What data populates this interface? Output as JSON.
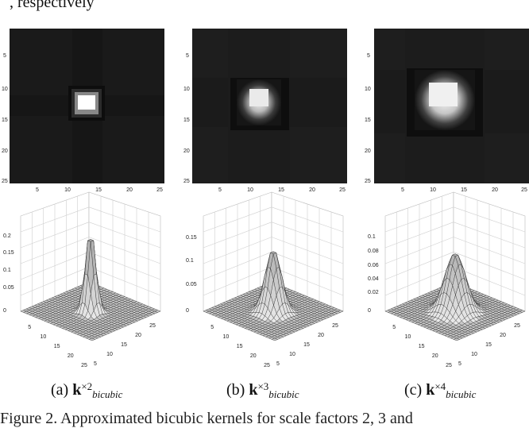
{
  "top_text": ", respectively",
  "panels": [
    {
      "ticks": [
        "5",
        "10",
        "15",
        "20",
        "25"
      ],
      "z_ticks": [
        "0.2",
        "0.15",
        "0.1",
        "0.05",
        "0"
      ],
      "xy_ticks": [
        "5",
        "10",
        "15",
        "20",
        "25"
      ],
      "caption_label": "(a)",
      "caption_k": "k",
      "caption_sup": "×2",
      "caption_sub": "bicubic"
    },
    {
      "ticks": [
        "5",
        "10",
        "15",
        "20",
        "25"
      ],
      "z_ticks": [
        "0.15",
        "0.1",
        "0.05",
        "0"
      ],
      "xy_ticks": [
        "5",
        "10",
        "15",
        "20",
        "25"
      ],
      "caption_label": "(b)",
      "caption_k": "k",
      "caption_sup": "×3",
      "caption_sub": "bicubic"
    },
    {
      "ticks": [
        "5",
        "10",
        "15",
        "20",
        "25"
      ],
      "z_ticks": [
        "0.1",
        "0.08",
        "0.06",
        "0.04",
        "0.02",
        "0"
      ],
      "xy_ticks": [
        "5",
        "10",
        "15",
        "20",
        "25"
      ],
      "caption_label": "(c)",
      "caption_k": "k",
      "caption_sup": "×4",
      "caption_sub": "bicubic"
    }
  ],
  "figure_caption": "Figure 2. Approximated bicubic kernels for scale factors 2, 3 and"
}
